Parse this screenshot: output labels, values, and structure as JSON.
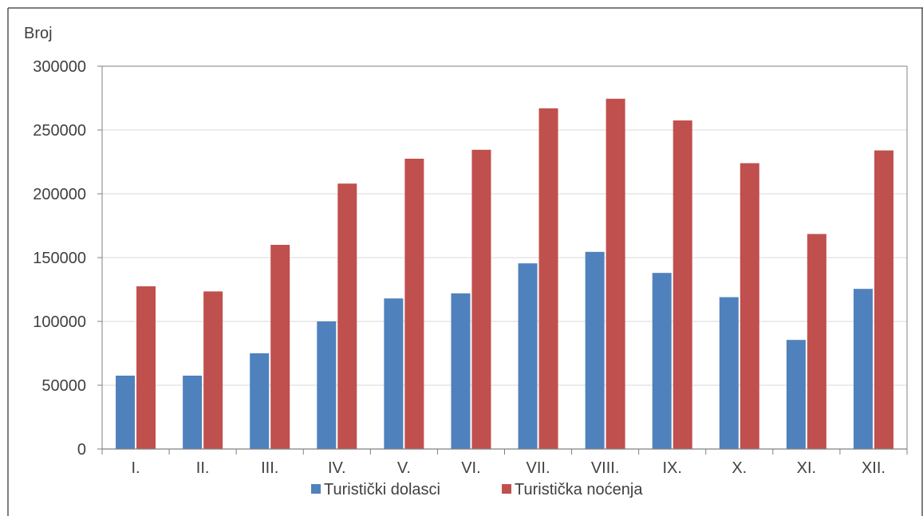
{
  "chart_data": {
    "type": "bar",
    "ylabel": "Broj",
    "xlabel": "",
    "ylim": [
      0,
      300000
    ],
    "yticks": [
      0,
      50000,
      100000,
      150000,
      200000,
      250000,
      300000
    ],
    "grid": true,
    "legend_position": "bottom",
    "categories": [
      "I.",
      "II.",
      "III.",
      "IV.",
      "V.",
      "VI.",
      "VII.",
      "VIII.",
      "IX.",
      "X.",
      "XI.",
      "XII."
    ],
    "series": [
      {
        "name": "Turistički dolasci",
        "color": "#4F81BD",
        "values": [
          57500,
          57500,
          75000,
          100000,
          118000,
          122000,
          145500,
          154500,
          138000,
          119000,
          85500,
          125500
        ]
      },
      {
        "name": "Turistička noćenja",
        "color": "#C0504D",
        "values": [
          127500,
          123500,
          160000,
          208000,
          227500,
          234500,
          267000,
          274500,
          257500,
          224000,
          168500,
          234000
        ]
      }
    ]
  }
}
